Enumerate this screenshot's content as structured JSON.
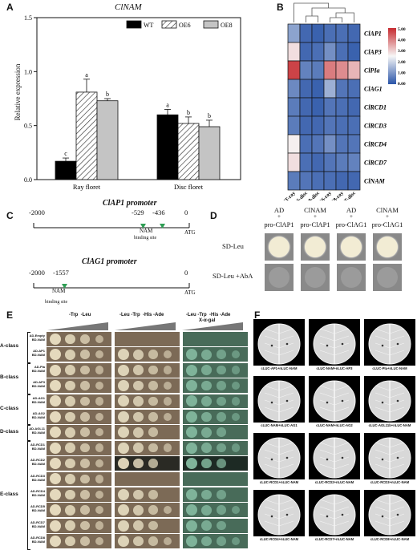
{
  "panels": {
    "A": "A",
    "B": "B",
    "C": "C",
    "D": "D",
    "E": "E",
    "F": "F"
  },
  "panelA": {
    "title": "ClNAM",
    "ylabel": "Relative expression",
    "yticks": [
      "0.0",
      "0.5",
      "1.0",
      "1.5"
    ],
    "legend": [
      "WT",
      "OE6",
      "OE8"
    ]
  },
  "chart_data": {
    "type": "bar",
    "title": "ClNAM",
    "ylabel": "Relative expression",
    "ylim": [
      0,
      1.5
    ],
    "categories": [
      "Ray floret",
      "Disc floret"
    ],
    "series": [
      {
        "name": "WT",
        "values": [
          0.17,
          0.6
        ],
        "errors": [
          0.03,
          0.05
        ],
        "letters": [
          "c",
          "a"
        ]
      },
      {
        "name": "OE6",
        "values": [
          0.81,
          0.52
        ],
        "errors": [
          0.12,
          0.06
        ],
        "letters": [
          "a",
          "b"
        ]
      },
      {
        "name": "OE8",
        "values": [
          0.73,
          0.49
        ],
        "errors": [
          0.02,
          0.06
        ],
        "letters": [
          "b",
          "b"
        ]
      }
    ]
  },
  "panelB": {
    "genes": [
      "ClAP1",
      "ClAP3",
      "ClPIa",
      "ClAG1",
      "ClRCD1",
      "ClRCD3",
      "ClRCD4",
      "ClRCD7",
      "ClNAM"
    ],
    "samples": [
      "WT-ray",
      "OE6-disc",
      "OE8-disc",
      "OE6-ray",
      "OE8-ray",
      "WT-disc"
    ],
    "scale": [
      "5.00",
      "4.00",
      "3.00",
      "2.00",
      "1.00",
      "0.00"
    ],
    "colors": {
      "high": "#c62a2f",
      "mid": "#f7f7f7",
      "low": "#2a55a8"
    },
    "matrix": [
      [
        1.2,
        0.3,
        0.2,
        0.4,
        0.4,
        0.3
      ],
      [
        2.8,
        0.3,
        0.4,
        0.9,
        0.4,
        0.2
      ],
      [
        4.7,
        0.7,
        0.6,
        4.0,
        3.8,
        3.3
      ],
      [
        0.8,
        0.3,
        0.2,
        1.4,
        0.5,
        0.4
      ],
      [
        0.6,
        0.3,
        0.2,
        0.5,
        0.4,
        0.3
      ],
      [
        0.6,
        0.3,
        0.3,
        0.5,
        0.4,
        0.4
      ],
      [
        2.6,
        0.4,
        0.5,
        0.9,
        0.5,
        0.5
      ],
      [
        2.8,
        0.4,
        0.3,
        0.5,
        0.6,
        0.7
      ],
      [
        0.6,
        0.5,
        0.4,
        0.4,
        0.3,
        0.3
      ]
    ]
  },
  "panelC": {
    "promoter1": "ClAP1 promoter",
    "promoter2": "ClAG1 promoter",
    "p1_ticks": [
      "-2000",
      "-529",
      "-436",
      "0"
    ],
    "p2_ticks": [
      "-2000",
      "-1557",
      "0"
    ],
    "nam": "NAM",
    "binding": "binding site",
    "atg": "ATG"
  },
  "panelD": {
    "cols": [
      [
        "AD",
        "+",
        "pro-ClAP1"
      ],
      [
        "ClNAM",
        "+",
        "pro-ClAP1"
      ],
      [
        "AD",
        "+",
        "pro-ClAG1"
      ],
      [
        "ClNAM",
        "+",
        "pro-ClAG1"
      ]
    ],
    "rows": [
      "SD-Leu",
      "SD-Leu +AbA"
    ]
  },
  "panelE": {
    "headers": [
      "-Trp  -Leu",
      "-Leu -Trp  -His -Ade",
      "-Leu -Trp  -His -Ade",
      "X-α-gal"
    ],
    "classes": [
      "A-class",
      "B-class",
      "C-class",
      "D-class",
      "E-class"
    ],
    "rows": [
      [
        "AD-Empty",
        "BD-NAM"
      ],
      [
        "AD-AP1",
        "BD-NAM"
      ],
      [
        "AD-PIa",
        "BD-NAM"
      ],
      [
        "AD-AP3",
        "BD-NAM"
      ],
      [
        "AD-AG1",
        "BD-NAM"
      ],
      [
        "AD-AG2",
        "BD-NAM"
      ],
      [
        "AD-AGL11",
        "BD-NAM"
      ],
      [
        "AD-RCD1",
        "BD-NAM"
      ],
      [
        "AD-RCD2",
        "BD-NAM"
      ],
      [
        "AD-RCD3",
        "BD-NAM"
      ],
      [
        "AD-RCD4",
        "BD-NAM"
      ],
      [
        "AD-RCD5",
        "BD-NAM"
      ],
      [
        "AD-RCD7",
        "BD-NAM"
      ],
      [
        "AD-RCD8",
        "BD-NAM"
      ]
    ]
  },
  "panelF": {
    "captions": [
      "cLUC-AP1+nLUC-NAM",
      "cLUC-NAM+nLUC-AP3",
      "cLUC-PIa+nLUC-NAM",
      "cLUC-NAM+nLUC-AG1",
      "cLUC-NAM+nLUC-AG2",
      "cLUC-AGL11b+nLUC-NAM",
      "cLUC-RCD1+nLUC-NAM",
      "cLUC-RCD2+nLUC-NAM",
      "cLUC-RCD3+nLUC-NAM",
      "cLUC-RCD4+nLUC-NAM",
      "cLUC-RCD7+nLUC-NAM",
      "cLUC-RCD8+nLUC-NAM"
    ]
  }
}
